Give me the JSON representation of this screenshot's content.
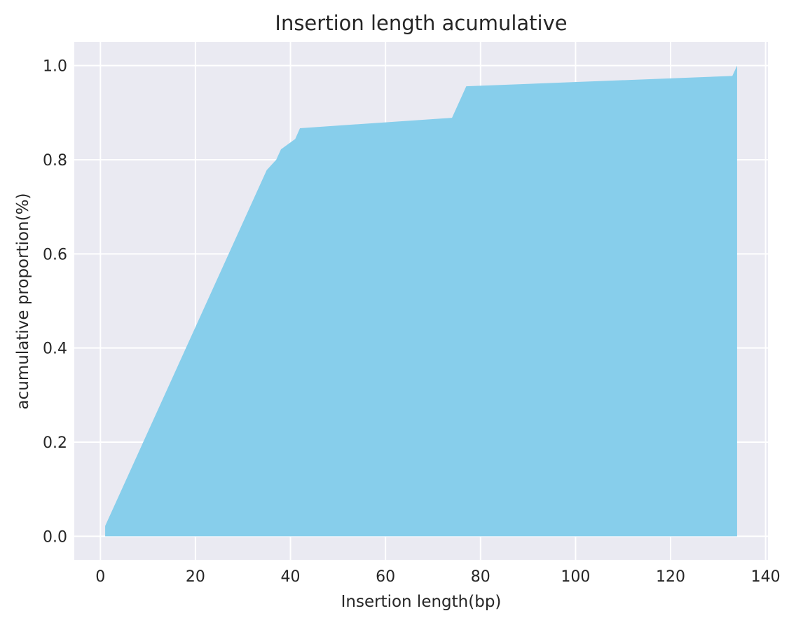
{
  "chart_data": {
    "type": "area",
    "title": "Insertion length acumulative",
    "xlabel": "Insertion length(bp)",
    "ylabel": "acumulative proportion(%)",
    "xlim": [
      -5.5,
      140.5
    ],
    "ylim": [
      -0.05,
      1.05
    ],
    "xticks": [
      0,
      20,
      40,
      60,
      80,
      100,
      120,
      140
    ],
    "yticks": [
      0.0,
      0.2,
      0.4,
      0.6,
      0.8,
      1.0
    ],
    "xtick_labels": [
      "0",
      "20",
      "40",
      "60",
      "80",
      "100",
      "120",
      "140"
    ],
    "ytick_labels": [
      "0.0",
      "0.2",
      "0.4",
      "0.6",
      "0.8",
      "1.0"
    ],
    "grid": true,
    "fill_color": "#87ceeb",
    "background_color": "#eaeaf2",
    "series": [
      {
        "x": [
          1,
          35,
          37,
          38,
          41,
          42,
          74,
          77,
          133,
          134
        ],
        "values": [
          0.022,
          0.778,
          0.8,
          0.822,
          0.844,
          0.867,
          0.889,
          0.956,
          0.978,
          1.0
        ]
      }
    ]
  }
}
